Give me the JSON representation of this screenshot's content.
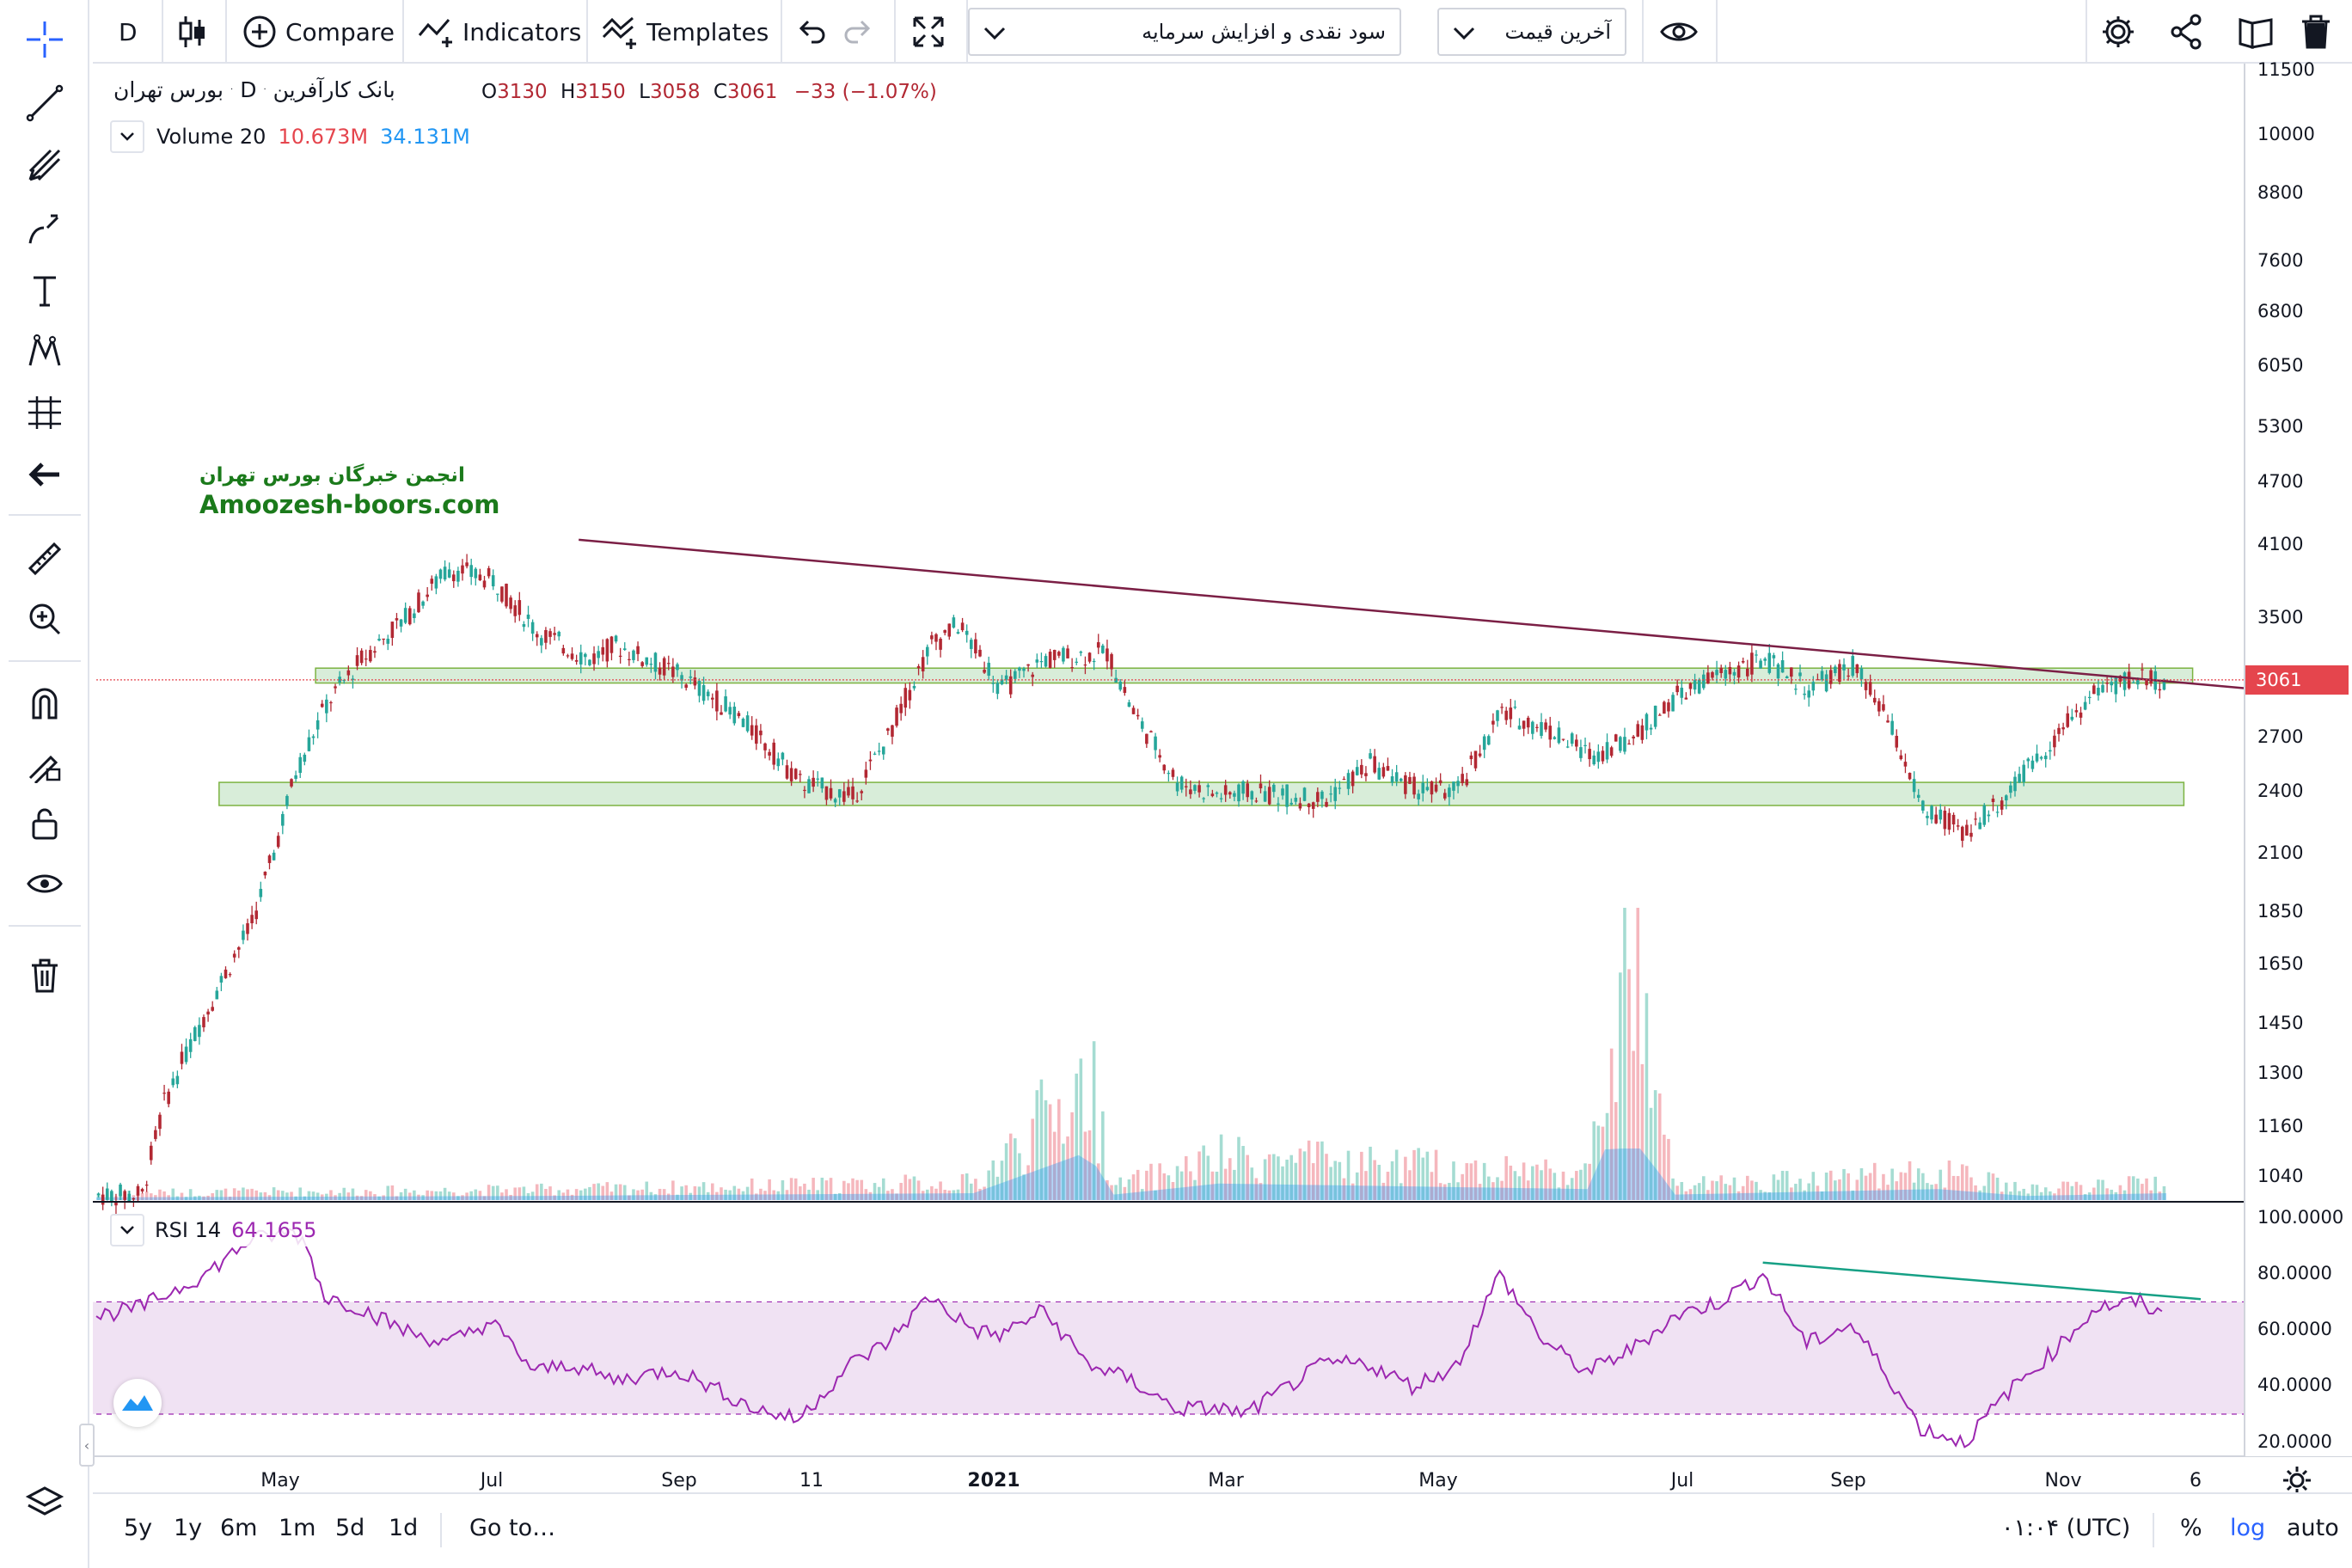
{
  "toolbar": {
    "interval": "D",
    "compare": "Compare",
    "indicators": "Indicators",
    "templates": "Templates",
    "dropdown1": "سود نقدی و افزایش سرمایه",
    "dropdown2": "آخرین قیمت"
  },
  "legend": {
    "symbol": "بانک کارآفرین",
    "separator": "·",
    "interval": "D",
    "exchange": "بورس تهران",
    "o_label": "O",
    "o": "3130",
    "h_label": "H",
    "h": "3150",
    "l_label": "L",
    "l": "3058",
    "c_label": "C",
    "c": "3061",
    "change": "−33",
    "change_pct": "(−1.07%)",
    "volume_label": "Volume 20",
    "volume": "10.673M",
    "volume_ma": "34.131M",
    "rsi_label": "RSI 14",
    "rsi": "64.1655"
  },
  "watermark": {
    "line1": "انجمن خبرگان بورس تهران",
    "line2": "Amoozesh-boors.com"
  },
  "price_axis": [
    "11500",
    "10000",
    "8800",
    "7600",
    "6800",
    "6050",
    "5300",
    "4700",
    "4100",
    "3500",
    "3061",
    "2700",
    "2400",
    "2100",
    "1850",
    "1650",
    "1450",
    "1300",
    "1160",
    "1040"
  ],
  "current_price": "3061",
  "rsi_axis": [
    "100.0000",
    "80.0000",
    "60.0000",
    "40.0000",
    "20.0000"
  ],
  "time_axis": [
    "May",
    "Jul",
    "Sep",
    "11",
    "2021",
    "Mar",
    "May",
    "Jul",
    "Sep",
    "Nov",
    "6"
  ],
  "bottom": {
    "ranges": [
      "5y",
      "1y",
      "6m",
      "1m",
      "5d",
      "1d"
    ],
    "goto": "Go to…",
    "clock": "۰۱:۰۴ (UTC)",
    "pct": "%",
    "log": "log",
    "auto": "auto"
  },
  "colors": {
    "up": "#26a69a",
    "down": "#b22833",
    "accent": "#2962ff",
    "zone": "#c8e6c9",
    "trend": "#7b1f45",
    "rsi": "#9c27b0",
    "rsi_band": "#f0e2f3",
    "pricetag": "#e5454d"
  },
  "chart_data": {
    "type": "candlestick",
    "scale": "log",
    "ylim": [
      1000,
      11500
    ],
    "price_path": [
      [
        0,
        1000
      ],
      [
        10,
        1000
      ],
      [
        15,
        1220
      ],
      [
        25,
        1500
      ],
      [
        35,
        1800
      ],
      [
        40,
        2100
      ],
      [
        45,
        2500
      ],
      [
        52,
        2900
      ],
      [
        60,
        3200
      ],
      [
        70,
        3500
      ],
      [
        80,
        3900
      ],
      [
        90,
        3800
      ],
      [
        100,
        3400
      ],
      [
        112,
        3200
      ],
      [
        118,
        3300
      ],
      [
        132,
        3100
      ],
      [
        145,
        2850
      ],
      [
        160,
        2450
      ],
      [
        172,
        2370
      ],
      [
        180,
        2700
      ],
      [
        190,
        3300
      ],
      [
        196,
        3450
      ],
      [
        206,
        3000
      ],
      [
        216,
        3200
      ],
      [
        230,
        3250
      ],
      [
        236,
        2850
      ],
      [
        246,
        2450
      ],
      [
        256,
        2380
      ],
      [
        262,
        2400
      ],
      [
        280,
        2360
      ],
      [
        290,
        2550
      ],
      [
        300,
        2420
      ],
      [
        310,
        2400
      ],
      [
        320,
        2850
      ],
      [
        330,
        2760
      ],
      [
        340,
        2600
      ],
      [
        350,
        2700
      ],
      [
        360,
        2950
      ],
      [
        370,
        3100
      ],
      [
        380,
        3200
      ],
      [
        390,
        3000
      ],
      [
        400,
        3150
      ],
      [
        408,
        2800
      ],
      [
        416,
        2300
      ],
      [
        426,
        2200
      ],
      [
        436,
        2400
      ],
      [
        446,
        2700
      ],
      [
        456,
        3000
      ],
      [
        466,
        3080
      ],
      [
        472,
        3061
      ]
    ],
    "volume_path": [
      [
        0,
        2
      ],
      [
        100,
        3
      ],
      [
        200,
        5
      ],
      [
        226,
        35
      ],
      [
        232,
        4
      ],
      [
        256,
        12
      ],
      [
        340,
        8
      ],
      [
        350,
        80
      ],
      [
        354,
        30
      ],
      [
        360,
        4
      ],
      [
        420,
        8
      ],
      [
        440,
        3
      ],
      [
        472,
        5
      ]
    ],
    "rsi_path": [
      [
        0,
        65
      ],
      [
        10,
        68
      ],
      [
        25,
        80
      ],
      [
        35,
        92
      ],
      [
        45,
        95
      ],
      [
        48,
        90
      ],
      [
        52,
        72
      ],
      [
        60,
        68
      ],
      [
        70,
        60
      ],
      [
        80,
        55
      ],
      [
        90,
        63
      ],
      [
        100,
        45
      ],
      [
        108,
        48
      ],
      [
        118,
        42
      ],
      [
        132,
        46
      ],
      [
        140,
        40
      ],
      [
        150,
        32
      ],
      [
        160,
        28
      ],
      [
        172,
        48
      ],
      [
        180,
        55
      ],
      [
        190,
        72
      ],
      [
        200,
        60
      ],
      [
        206,
        58
      ],
      [
        216,
        67
      ],
      [
        226,
        48
      ],
      [
        236,
        42
      ],
      [
        246,
        32
      ],
      [
        256,
        32
      ],
      [
        262,
        30
      ],
      [
        280,
        48
      ],
      [
        290,
        48
      ],
      [
        300,
        40
      ],
      [
        310,
        47
      ],
      [
        320,
        80
      ],
      [
        330,
        56
      ],
      [
        340,
        45
      ],
      [
        350,
        53
      ],
      [
        360,
        65
      ],
      [
        370,
        70
      ],
      [
        380,
        80
      ],
      [
        390,
        55
      ],
      [
        400,
        62
      ],
      [
        408,
        45
      ],
      [
        416,
        25
      ],
      [
        426,
        20
      ],
      [
        436,
        38
      ],
      [
        446,
        52
      ],
      [
        456,
        68
      ],
      [
        466,
        70
      ],
      [
        472,
        64
      ]
    ],
    "rsi_ylim": [
      15,
      102
    ],
    "rsi_band": [
      30,
      70
    ],
    "support_zones": [
      [
        2330,
        2450
      ],
      [
        3040,
        3140
      ]
    ],
    "trendline": {
      "from": [
        110,
        4150
      ],
      "to": [
        472,
        3040
      ]
    },
    "rsi_trendline": {
      "from": [
        380,
        84
      ],
      "to": [
        472,
        71
      ]
    }
  }
}
